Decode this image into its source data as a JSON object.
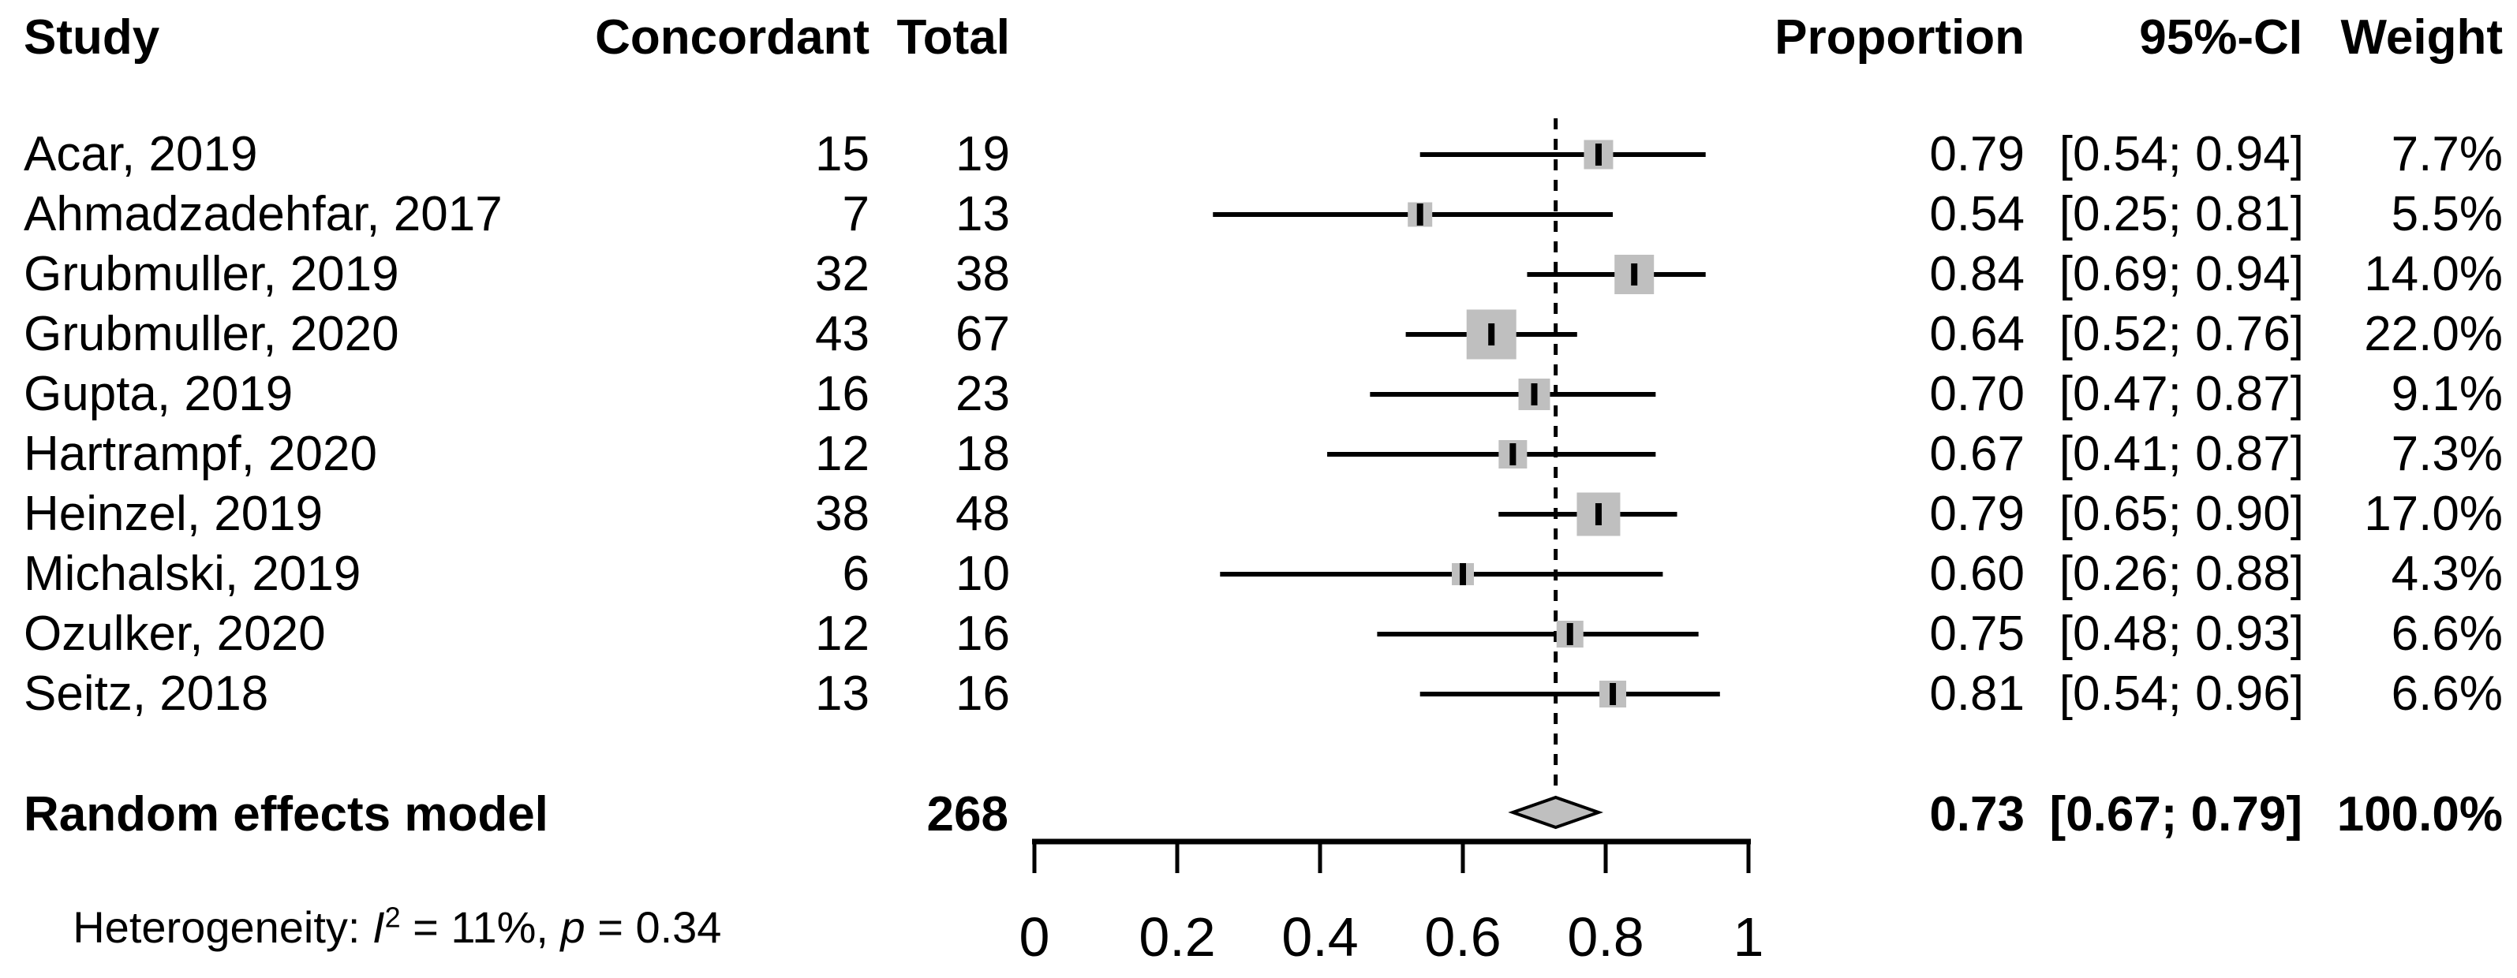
{
  "chart_data": {
    "type": "forest",
    "columns": {
      "study": "Study",
      "concordant": "Concordant",
      "total": "Total",
      "proportion": "Proportion",
      "ci": "95%-CI",
      "weight": "Weight"
    },
    "axis": {
      "range": [
        0,
        1
      ],
      "ticks": [
        0,
        0.2,
        0.4,
        0.6,
        0.8,
        1
      ],
      "tick_labels": [
        "0",
        "0.2",
        "0.4",
        "0.6",
        "0.8",
        "1"
      ],
      "grid": false
    },
    "reference_line": 0.73,
    "studies": [
      {
        "name": "Acar, 2019",
        "concordant": "15",
        "total": "19",
        "proportion": "0.79",
        "ci": "[0.54; 0.94]",
        "weight": "7.7%",
        "est": 0.79,
        "lo": 0.54,
        "hi": 0.94,
        "weight_value": 7.7
      },
      {
        "name": "Ahmadzadehfar, 2017",
        "concordant": "7",
        "total": "13",
        "proportion": "0.54",
        "ci": "[0.25; 0.81]",
        "weight": "5.5%",
        "est": 0.54,
        "lo": 0.25,
        "hi": 0.81,
        "weight_value": 5.5
      },
      {
        "name": "Grubmuller, 2019",
        "concordant": "32",
        "total": "38",
        "proportion": "0.84",
        "ci": "[0.69; 0.94]",
        "weight": "14.0%",
        "est": 0.84,
        "lo": 0.69,
        "hi": 0.94,
        "weight_value": 14.0
      },
      {
        "name": "Grubmuller, 2020",
        "concordant": "43",
        "total": "67",
        "proportion": "0.64",
        "ci": "[0.52; 0.76]",
        "weight": "22.0%",
        "est": 0.64,
        "lo": 0.52,
        "hi": 0.76,
        "weight_value": 22.0
      },
      {
        "name": "Gupta, 2019",
        "concordant": "16",
        "total": "23",
        "proportion": "0.70",
        "ci": "[0.47; 0.87]",
        "weight": "9.1%",
        "est": 0.7,
        "lo": 0.47,
        "hi": 0.87,
        "weight_value": 9.1
      },
      {
        "name": "Hartrampf, 2020",
        "concordant": "12",
        "total": "18",
        "proportion": "0.67",
        "ci": "[0.41; 0.87]",
        "weight": "7.3%",
        "est": 0.67,
        "lo": 0.41,
        "hi": 0.87,
        "weight_value": 7.3
      },
      {
        "name": "Heinzel, 2019",
        "concordant": "38",
        "total": "48",
        "proportion": "0.79",
        "ci": "[0.65; 0.90]",
        "weight": "17.0%",
        "est": 0.79,
        "lo": 0.65,
        "hi": 0.9,
        "weight_value": 17.0
      },
      {
        "name": "Michalski, 2019",
        "concordant": "6",
        "total": "10",
        "proportion": "0.60",
        "ci": "[0.26; 0.88]",
        "weight": "4.3%",
        "est": 0.6,
        "lo": 0.26,
        "hi": 0.88,
        "weight_value": 4.3
      },
      {
        "name": "Ozulker, 2020",
        "concordant": "12",
        "total": "16",
        "proportion": "0.75",
        "ci": "[0.48; 0.93]",
        "weight": "6.6%",
        "est": 0.75,
        "lo": 0.48,
        "hi": 0.93,
        "weight_value": 6.6
      },
      {
        "name": "Seitz, 2018",
        "concordant": "13",
        "total": "16",
        "proportion": "0.81",
        "ci": "[0.54; 0.96]",
        "weight": "6.6%",
        "est": 0.81,
        "lo": 0.54,
        "hi": 0.96,
        "weight_value": 6.6
      }
    ],
    "summary": {
      "label": "Random effects model",
      "total": "268",
      "proportion": "0.73",
      "ci": "[0.67; 0.79]",
      "weight": "100.0%",
      "est": 0.73,
      "lo": 0.67,
      "hi": 0.79
    },
    "heterogeneity": {
      "prefix": "Heterogeneity: ",
      "i": "I",
      "sup": "2",
      "mid": " = 11%, ",
      "p": "p",
      "suffix": " = 0.34"
    },
    "colors": {
      "square": "#bfbfbf",
      "diamond": "#bfbfbf",
      "line": "#000000",
      "text": "#000000",
      "background": "#ffffff"
    }
  }
}
